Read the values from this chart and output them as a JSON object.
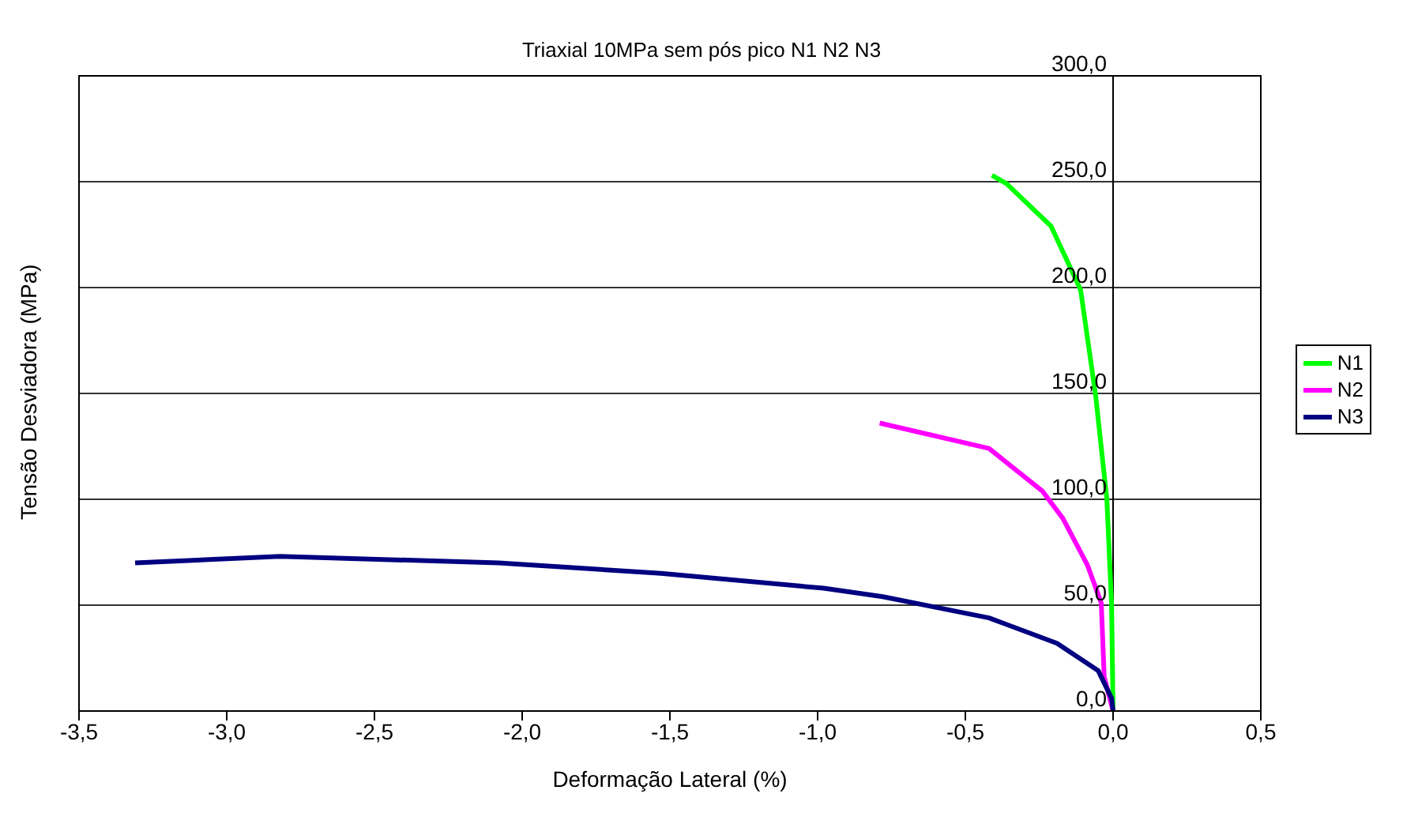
{
  "chart_data": {
    "type": "line",
    "title": "Triaxial 10MPa sem pós pico N1 N2 N3",
    "xlabel": "Deformação Lateral (%)",
    "ylabel": "Tensão Desviadora (MPa)",
    "xlim": [
      -3.5,
      0.5
    ],
    "ylim": [
      0,
      300
    ],
    "xticks": [
      {
        "value": -3.5,
        "label": "-3,5"
      },
      {
        "value": -3,
        "label": "-3,0"
      },
      {
        "value": -2.5,
        "label": "-2,5"
      },
      {
        "value": -2,
        "label": "-2,0"
      },
      {
        "value": -1.5,
        "label": "-1,5"
      },
      {
        "value": -1,
        "label": "-1,0"
      },
      {
        "value": -0.5,
        "label": "-0,5"
      },
      {
        "value": 0,
        "label": "0,0"
      },
      {
        "value": 0.5,
        "label": "0,5"
      }
    ],
    "yticks": [
      {
        "value": 0,
        "label": "0,0"
      },
      {
        "value": 50,
        "label": "50,0"
      },
      {
        "value": 100,
        "label": "100,0"
      },
      {
        "value": 150,
        "label": "150,0"
      },
      {
        "value": 200,
        "label": "200,0"
      },
      {
        "value": 250,
        "label": "250,0"
      },
      {
        "value": 300,
        "label": "300,0"
      }
    ],
    "grid": "y",
    "legend": "right",
    "marker": "none",
    "line_style": "solid",
    "series": [
      {
        "name": "N1",
        "color": "#00ff00",
        "x": [
          -0.41,
          -0.36,
          -0.21,
          -0.11,
          -0.059,
          -0.021,
          -0.005,
          0
        ],
        "values": [
          253,
          249,
          229,
          199,
          149,
          100,
          50,
          0
        ]
      },
      {
        "name": "N2",
        "color": "#ff00ff",
        "x": [
          -0.79,
          -0.42,
          -0.24,
          -0.17,
          -0.087,
          -0.04,
          -0.03,
          0
        ],
        "values": [
          136,
          124,
          104,
          91,
          69,
          51,
          16,
          0
        ]
      },
      {
        "name": "N3",
        "color": "#000080",
        "x": [
          -3.31,
          -2.82,
          -2.08,
          -1.53,
          -0.98,
          -0.78,
          -0.42,
          -0.19,
          -0.05,
          -0.005,
          0
        ],
        "values": [
          70,
          73,
          70,
          65,
          58,
          54,
          44,
          32,
          19,
          6,
          0
        ]
      }
    ]
  }
}
